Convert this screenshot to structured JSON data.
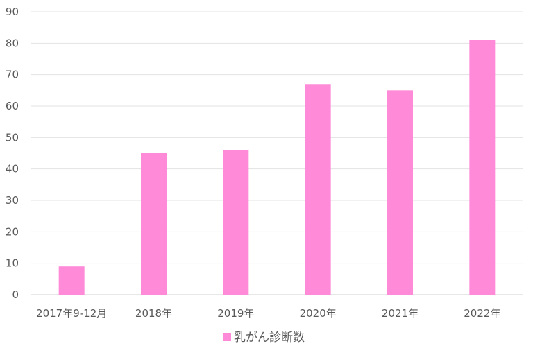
{
  "chart_data": {
    "type": "bar",
    "categories": [
      "2017年9-12月",
      "2018年",
      "2019年",
      "2020年",
      "2021年",
      "2022年"
    ],
    "series": [
      {
        "name": "乳がん診断数",
        "values": [
          9,
          45,
          46,
          67,
          65,
          81
        ],
        "color": "#ff8ad8"
      }
    ],
    "ylim": [
      0,
      90
    ],
    "yticks": [
      0,
      10,
      20,
      30,
      40,
      50,
      60,
      70,
      80,
      90
    ],
    "grid": true,
    "legend_position": "bottom"
  }
}
